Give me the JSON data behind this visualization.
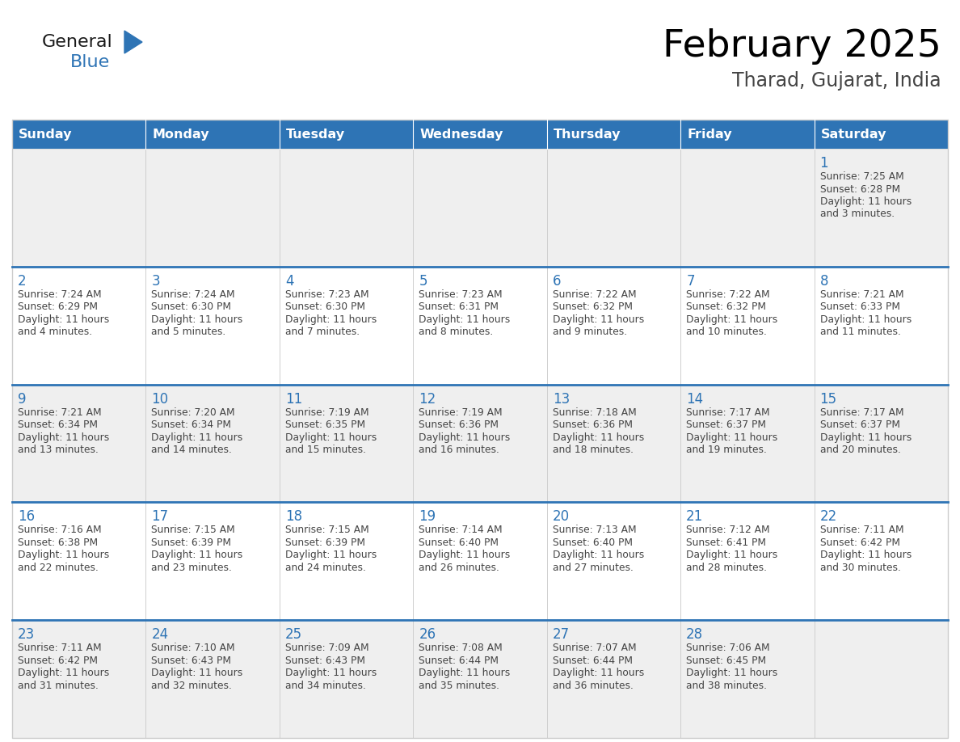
{
  "title": "February 2025",
  "subtitle": "Tharad, Gujarat, India",
  "header_color": "#2E74B5",
  "header_text_color": "#FFFFFF",
  "cell_bg_white": "#FFFFFF",
  "cell_bg_gray": "#EFEFEF",
  "week_divider_color": "#2E74B5",
  "cell_border_color": "#CCCCCC",
  "outer_border_color": "#CCCCCC",
  "day_headers": [
    "Sunday",
    "Monday",
    "Tuesday",
    "Wednesday",
    "Thursday",
    "Friday",
    "Saturday"
  ],
  "title_color": "#000000",
  "subtitle_color": "#444444",
  "day_num_color": "#2E74B5",
  "cell_text_color": "#444444",
  "logo_general_color": "#1A1A1A",
  "logo_blue_color": "#2E74B5",
  "weeks": [
    [
      {
        "day": null,
        "info": ""
      },
      {
        "day": null,
        "info": ""
      },
      {
        "day": null,
        "info": ""
      },
      {
        "day": null,
        "info": ""
      },
      {
        "day": null,
        "info": ""
      },
      {
        "day": null,
        "info": ""
      },
      {
        "day": 1,
        "info": "Sunrise: 7:25 AM\nSunset: 6:28 PM\nDaylight: 11 hours\nand 3 minutes."
      }
    ],
    [
      {
        "day": 2,
        "info": "Sunrise: 7:24 AM\nSunset: 6:29 PM\nDaylight: 11 hours\nand 4 minutes."
      },
      {
        "day": 3,
        "info": "Sunrise: 7:24 AM\nSunset: 6:30 PM\nDaylight: 11 hours\nand 5 minutes."
      },
      {
        "day": 4,
        "info": "Sunrise: 7:23 AM\nSunset: 6:30 PM\nDaylight: 11 hours\nand 7 minutes."
      },
      {
        "day": 5,
        "info": "Sunrise: 7:23 AM\nSunset: 6:31 PM\nDaylight: 11 hours\nand 8 minutes."
      },
      {
        "day": 6,
        "info": "Sunrise: 7:22 AM\nSunset: 6:32 PM\nDaylight: 11 hours\nand 9 minutes."
      },
      {
        "day": 7,
        "info": "Sunrise: 7:22 AM\nSunset: 6:32 PM\nDaylight: 11 hours\nand 10 minutes."
      },
      {
        "day": 8,
        "info": "Sunrise: 7:21 AM\nSunset: 6:33 PM\nDaylight: 11 hours\nand 11 minutes."
      }
    ],
    [
      {
        "day": 9,
        "info": "Sunrise: 7:21 AM\nSunset: 6:34 PM\nDaylight: 11 hours\nand 13 minutes."
      },
      {
        "day": 10,
        "info": "Sunrise: 7:20 AM\nSunset: 6:34 PM\nDaylight: 11 hours\nand 14 minutes."
      },
      {
        "day": 11,
        "info": "Sunrise: 7:19 AM\nSunset: 6:35 PM\nDaylight: 11 hours\nand 15 minutes."
      },
      {
        "day": 12,
        "info": "Sunrise: 7:19 AM\nSunset: 6:36 PM\nDaylight: 11 hours\nand 16 minutes."
      },
      {
        "day": 13,
        "info": "Sunrise: 7:18 AM\nSunset: 6:36 PM\nDaylight: 11 hours\nand 18 minutes."
      },
      {
        "day": 14,
        "info": "Sunrise: 7:17 AM\nSunset: 6:37 PM\nDaylight: 11 hours\nand 19 minutes."
      },
      {
        "day": 15,
        "info": "Sunrise: 7:17 AM\nSunset: 6:37 PM\nDaylight: 11 hours\nand 20 minutes."
      }
    ],
    [
      {
        "day": 16,
        "info": "Sunrise: 7:16 AM\nSunset: 6:38 PM\nDaylight: 11 hours\nand 22 minutes."
      },
      {
        "day": 17,
        "info": "Sunrise: 7:15 AM\nSunset: 6:39 PM\nDaylight: 11 hours\nand 23 minutes."
      },
      {
        "day": 18,
        "info": "Sunrise: 7:15 AM\nSunset: 6:39 PM\nDaylight: 11 hours\nand 24 minutes."
      },
      {
        "day": 19,
        "info": "Sunrise: 7:14 AM\nSunset: 6:40 PM\nDaylight: 11 hours\nand 26 minutes."
      },
      {
        "day": 20,
        "info": "Sunrise: 7:13 AM\nSunset: 6:40 PM\nDaylight: 11 hours\nand 27 minutes."
      },
      {
        "day": 21,
        "info": "Sunrise: 7:12 AM\nSunset: 6:41 PM\nDaylight: 11 hours\nand 28 minutes."
      },
      {
        "day": 22,
        "info": "Sunrise: 7:11 AM\nSunset: 6:42 PM\nDaylight: 11 hours\nand 30 minutes."
      }
    ],
    [
      {
        "day": 23,
        "info": "Sunrise: 7:11 AM\nSunset: 6:42 PM\nDaylight: 11 hours\nand 31 minutes."
      },
      {
        "day": 24,
        "info": "Sunrise: 7:10 AM\nSunset: 6:43 PM\nDaylight: 11 hours\nand 32 minutes."
      },
      {
        "day": 25,
        "info": "Sunrise: 7:09 AM\nSunset: 6:43 PM\nDaylight: 11 hours\nand 34 minutes."
      },
      {
        "day": 26,
        "info": "Sunrise: 7:08 AM\nSunset: 6:44 PM\nDaylight: 11 hours\nand 35 minutes."
      },
      {
        "day": 27,
        "info": "Sunrise: 7:07 AM\nSunset: 6:44 PM\nDaylight: 11 hours\nand 36 minutes."
      },
      {
        "day": 28,
        "info": "Sunrise: 7:06 AM\nSunset: 6:45 PM\nDaylight: 11 hours\nand 38 minutes."
      },
      {
        "day": null,
        "info": ""
      }
    ]
  ],
  "row_bg_colors": [
    "#EFEFEF",
    "#FFFFFF",
    "#EFEFEF",
    "#FFFFFF",
    "#EFEFEF"
  ]
}
